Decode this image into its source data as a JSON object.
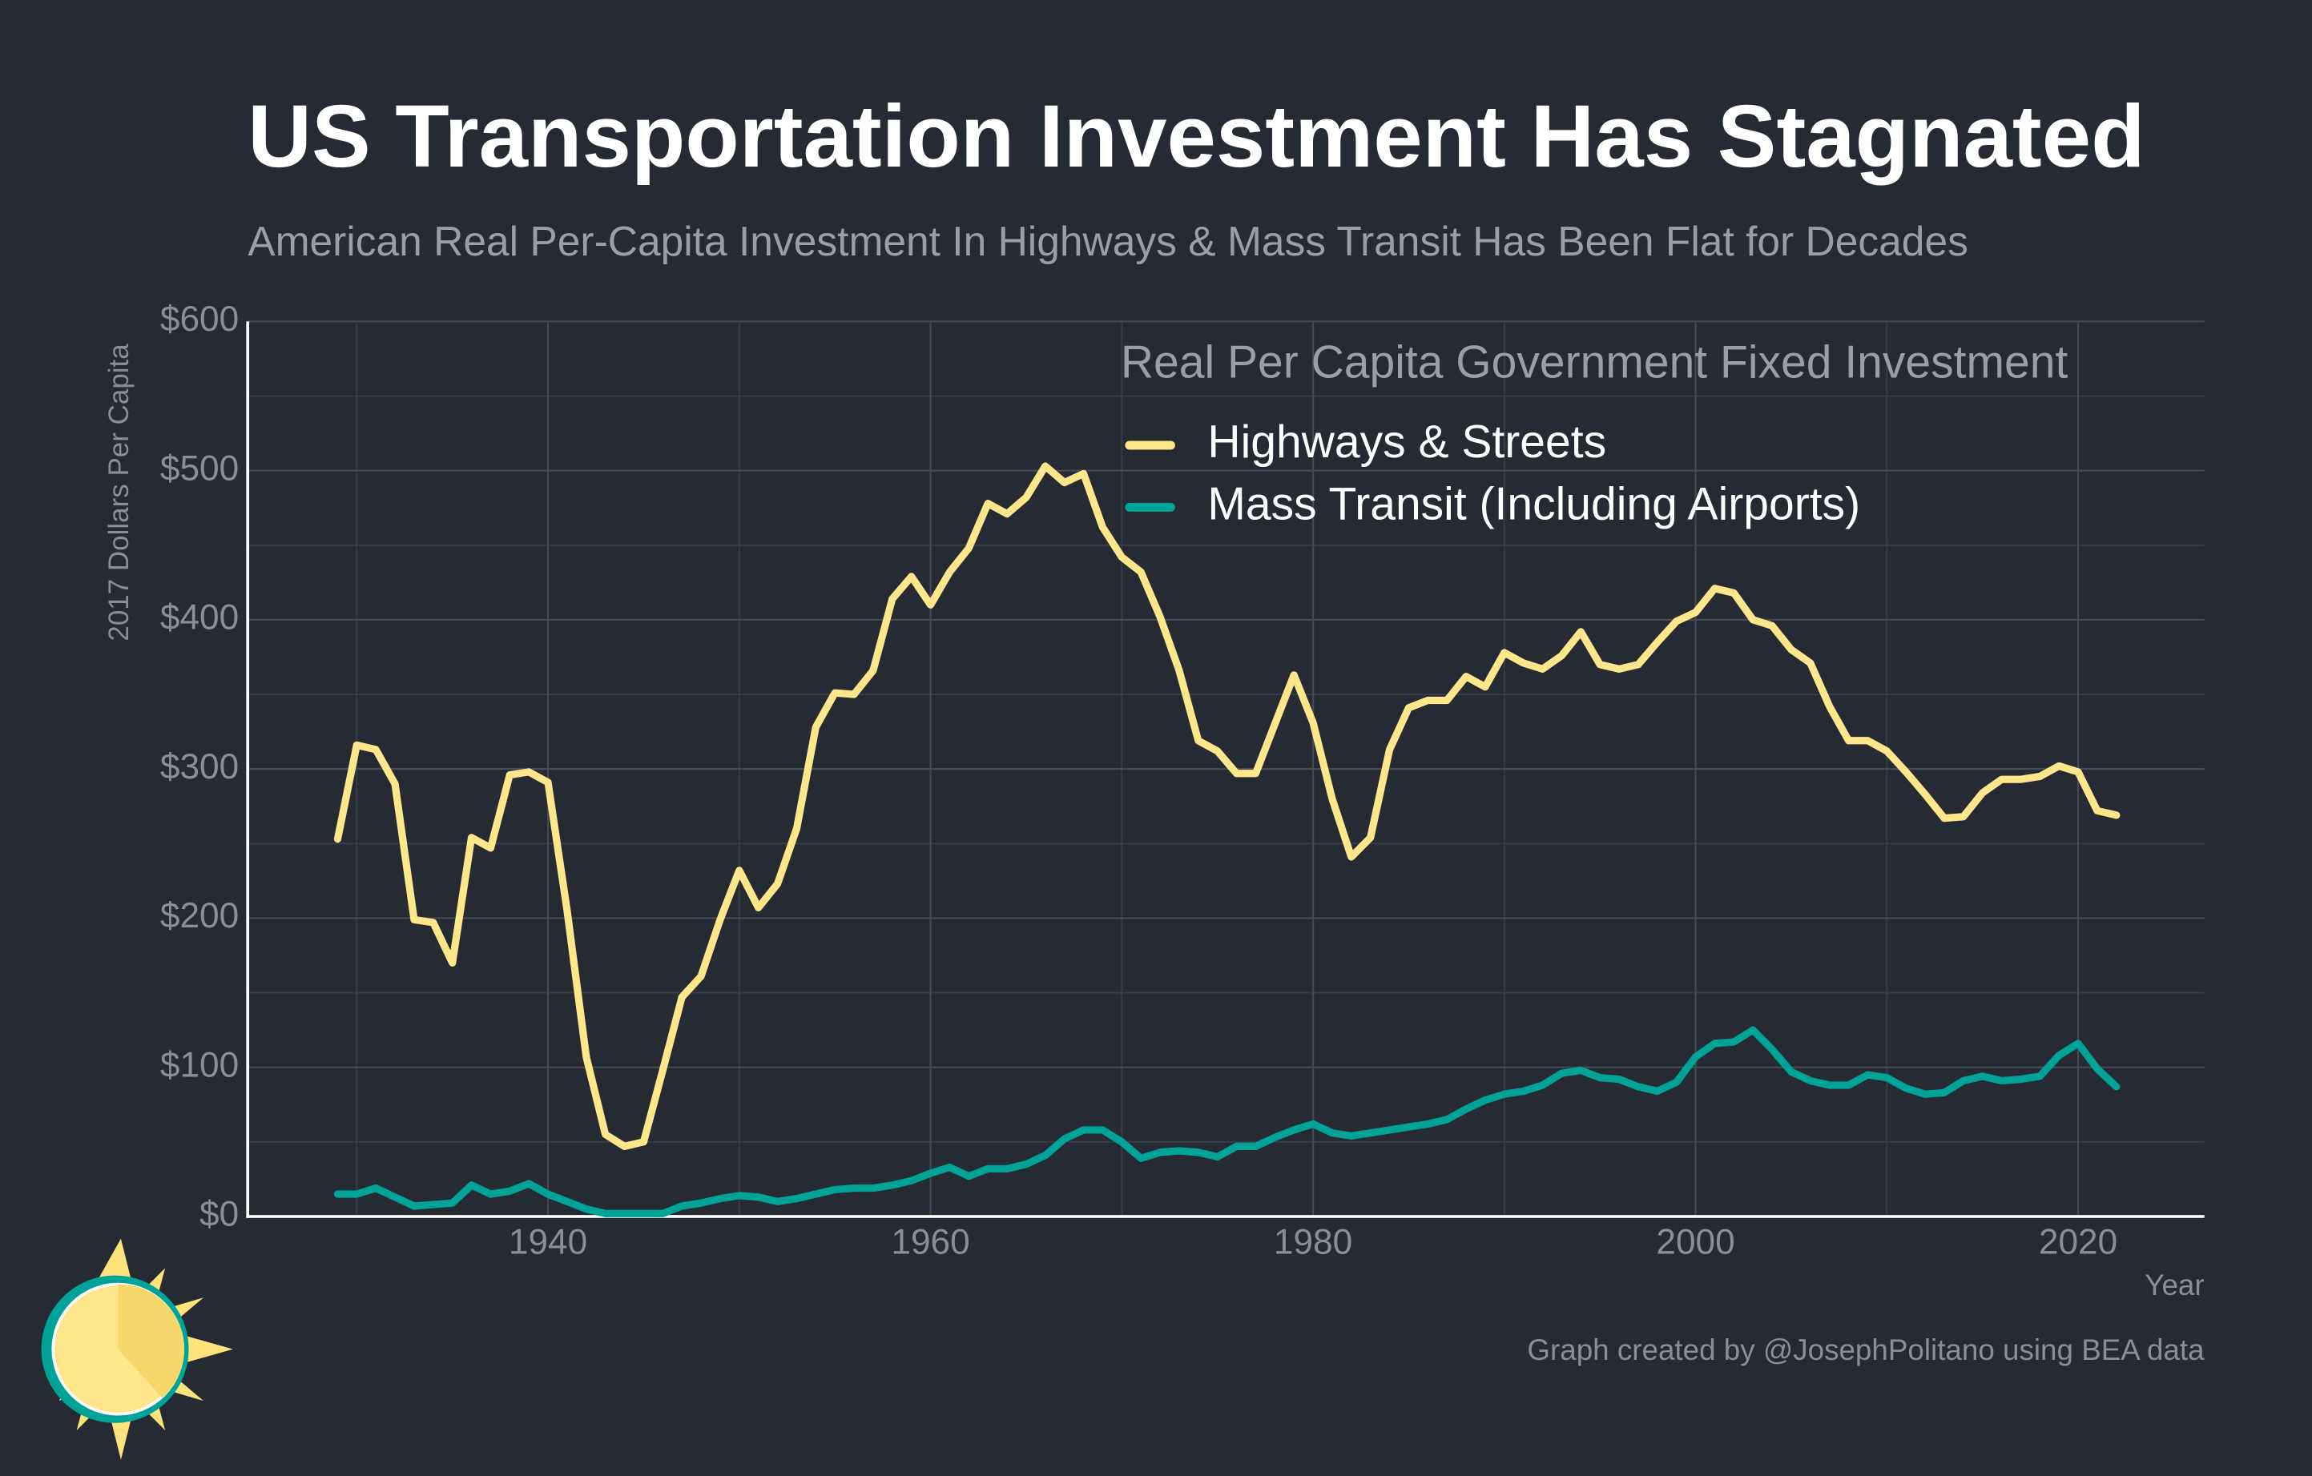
{
  "chart_data": {
    "type": "line",
    "title": "US Transportation Investment Has Stagnated",
    "subtitle": "American Real Per-Capita Investment In Highways & Mass Transit Has Been Flat for Decades",
    "xlabel": "Year",
    "ylabel": "2017 Dollars Per Capita",
    "credit": "Graph created by @JosephPolitano using BEA data",
    "legend_title": "Real Per Capita Government Fixed Investment",
    "legend_loc": "upper right",
    "grid": true,
    "x": [
      1929,
      1930,
      1931,
      1932,
      1933,
      1934,
      1935,
      1936,
      1937,
      1938,
      1939,
      1940,
      1941,
      1942,
      1943,
      1944,
      1945,
      1946,
      1947,
      1948,
      1949,
      1950,
      1951,
      1952,
      1953,
      1954,
      1955,
      1956,
      1957,
      1958,
      1959,
      1960,
      1961,
      1962,
      1963,
      1964,
      1965,
      1966,
      1967,
      1968,
      1969,
      1970,
      1971,
      1972,
      1973,
      1974,
      1975,
      1976,
      1977,
      1978,
      1979,
      1980,
      1981,
      1982,
      1983,
      1984,
      1985,
      1986,
      1987,
      1988,
      1989,
      1990,
      1991,
      1992,
      1993,
      1994,
      1995,
      1996,
      1997,
      1998,
      1999,
      2000,
      2001,
      2002,
      2003,
      2004,
      2005,
      2006,
      2007,
      2008,
      2009,
      2010,
      2011,
      2012,
      2013,
      2014,
      2015,
      2016,
      2017,
      2018,
      2019,
      2020,
      2021,
      2022
    ],
    "series": [
      {
        "name": "Highways & Streets",
        "color": "#ffe68a",
        "values": [
          253,
          316,
          313,
          290,
          199,
          197,
          170,
          254,
          247,
          296,
          298,
          291,
          205,
          107,
          55,
          47,
          50,
          98,
          147,
          161,
          199,
          232,
          207,
          223,
          260,
          328,
          351,
          350,
          366,
          414,
          429,
          410,
          432,
          448,
          478,
          471,
          482,
          503,
          492,
          498,
          462,
          442,
          432,
          402,
          366,
          319,
          312,
          297,
          297,
          330,
          363,
          331,
          280,
          241,
          254,
          313,
          341,
          346,
          346,
          362,
          355,
          378,
          371,
          367,
          376,
          392,
          370,
          367,
          370,
          385,
          399,
          405,
          421,
          418,
          400,
          396,
          380,
          371,
          342,
          319,
          319,
          312,
          298,
          283,
          267,
          268,
          284,
          293,
          293,
          295,
          302,
          298,
          272,
          269
        ]
      },
      {
        "name": "Mass Transit (Including Airports)",
        "color": "#00a398",
        "values": [
          15,
          15,
          19,
          13,
          7,
          8,
          9,
          21,
          15,
          17,
          22,
          15,
          10,
          5,
          2,
          2,
          2,
          2,
          7,
          9,
          12,
          14,
          13,
          10,
          12,
          15,
          18,
          19,
          19,
          21,
          24,
          29,
          33,
          27,
          32,
          32,
          35,
          41,
          52,
          58,
          58,
          50,
          39,
          43,
          44,
          43,
          40,
          47,
          47,
          53,
          58,
          62,
          56,
          54,
          56,
          58,
          60,
          62,
          65,
          72,
          78,
          82,
          84,
          88,
          96,
          98,
          93,
          92,
          87,
          84,
          90,
          107,
          116,
          117,
          125,
          112,
          97,
          91,
          88,
          88,
          95,
          93,
          86,
          82,
          83,
          91,
          94,
          91,
          92,
          94,
          108,
          116,
          99,
          87
        ]
      }
    ],
    "xlim": [
      1924.3,
      2026.6
    ],
    "ylim": [
      0,
      600
    ],
    "xticks": [
      1940,
      1960,
      1980,
      2000,
      2020
    ],
    "minor_xticks": [
      1930,
      1950,
      1970,
      1990,
      2010
    ],
    "yticks": [
      {
        "value": 0,
        "label": "$0"
      },
      {
        "value": 100,
        "label": "$100"
      },
      {
        "value": 200,
        "label": "$200"
      },
      {
        "value": 300,
        "label": "$300"
      },
      {
        "value": 400,
        "label": "$400"
      },
      {
        "value": 500,
        "label": "$500"
      },
      {
        "value": 600,
        "label": "$600"
      }
    ],
    "minor_yticks": [
      50,
      150,
      250,
      350,
      450,
      550
    ]
  }
}
